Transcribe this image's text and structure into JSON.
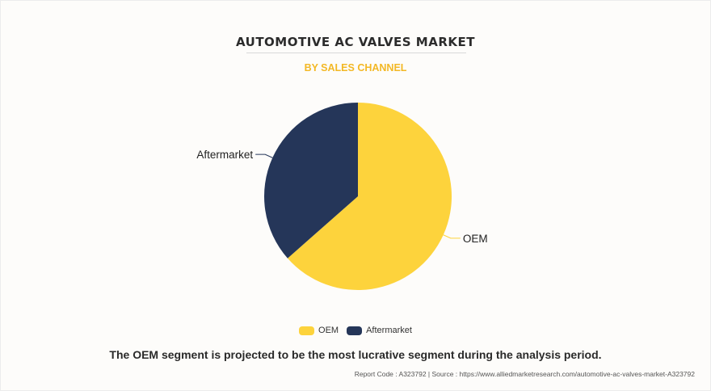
{
  "chart_data": {
    "type": "pie",
    "title": "AUTOMOTIVE AC VALVES MARKET",
    "subtitle": "BY SALES CHANNEL",
    "categories": [
      "OEM",
      "Aftermarket"
    ],
    "values": [
      63.5,
      36.5
    ],
    "colors": [
      "#fdd33c",
      "#253659"
    ],
    "legend_placement": "bottom-center"
  },
  "caption": "The OEM segment is projected to be the most lucrative segment during the analysis period.",
  "footer": "Report Code : A323792  |  Source : https://www.alliedmarketresearch.com/automotive-ac-valves-market-A323792"
}
